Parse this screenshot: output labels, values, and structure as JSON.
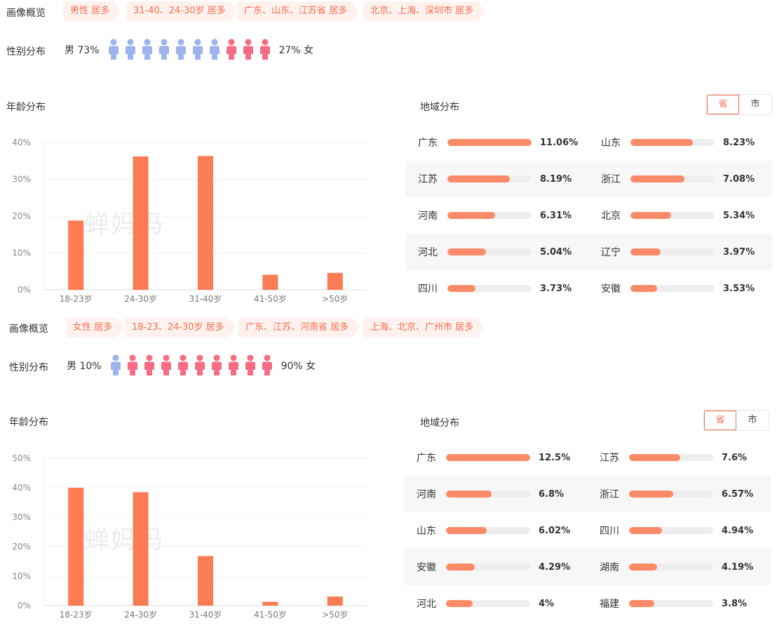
{
  "panels": [
    {
      "overview_label": "画像概览",
      "tags": [
        "男性 居多",
        "31-40、24-30岁 居多",
        "广东、山东、江苏省 居多",
        "北京、上海、深圳市 居多"
      ],
      "gender_label": "性别分布",
      "male_text": "男 73%",
      "female_text": "27% 女",
      "male_icons": 7,
      "female_icons": 3,
      "age_title": "年龄分布",
      "region_title": "地域分布",
      "toggle": {
        "province": "省",
        "city": "市"
      },
      "watermark": "蝉妈妈",
      "chart_data": {
        "type": "bar",
        "categories": [
          "18-23岁",
          "24-30岁",
          "31-40岁",
          "41-50岁",
          ">50岁"
        ],
        "values": [
          18.8,
          36.2,
          36.3,
          4.1,
          4.6
        ],
        "ylim": [
          0,
          40
        ],
        "yticks": [
          0,
          10,
          20,
          30,
          40
        ],
        "ytick_labels": [
          "0%",
          "10%",
          "20%",
          "30%",
          "40%"
        ],
        "title": "年龄分布",
        "xlabel": "",
        "ylabel": ""
      },
      "regions": [
        {
          "name": "广东",
          "value": "11.06%",
          "pct": 11.06
        },
        {
          "name": "山东",
          "value": "8.23%",
          "pct": 8.23
        },
        {
          "name": "江苏",
          "value": "8.19%",
          "pct": 8.19
        },
        {
          "name": "浙江",
          "value": "7.08%",
          "pct": 7.08
        },
        {
          "name": "河南",
          "value": "6.31%",
          "pct": 6.31
        },
        {
          "name": "北京",
          "value": "5.34%",
          "pct": 5.34
        },
        {
          "name": "河北",
          "value": "5.04%",
          "pct": 5.04
        },
        {
          "name": "辽宁",
          "value": "3.97%",
          "pct": 3.97
        },
        {
          "name": "四川",
          "value": "3.73%",
          "pct": 3.73
        },
        {
          "name": "安徽",
          "value": "3.53%",
          "pct": 3.53
        }
      ]
    },
    {
      "overview_label": "画像概览",
      "tags": [
        "女性 居多",
        "18-23、24-30岁 居多",
        "广东、江苏、河南省 居多",
        "上海、北京、广州市 居多"
      ],
      "gender_label": "性别分布",
      "male_text": "男 10%",
      "female_text": "90% 女",
      "male_icons": 1,
      "female_icons": 9,
      "age_title": "年龄分布",
      "region_title": "地域分布",
      "toggle": {
        "province": "省",
        "city": "市"
      },
      "watermark": "蝉妈妈",
      "chart_data": {
        "type": "bar",
        "categories": [
          "18-23岁",
          "24-30岁",
          "31-40岁",
          "41-50岁",
          ">50岁"
        ],
        "values": [
          40.0,
          38.5,
          16.8,
          1.3,
          3.1
        ],
        "ylim": [
          0,
          50
        ],
        "yticks": [
          0,
          10,
          20,
          30,
          40,
          50
        ],
        "ytick_labels": [
          "0%",
          "10%",
          "20%",
          "30%",
          "40%",
          "50%"
        ],
        "title": "年龄分布",
        "xlabel": "",
        "ylabel": ""
      },
      "regions": [
        {
          "name": "广东",
          "value": "12.5%",
          "pct": 12.5
        },
        {
          "name": "江苏",
          "value": "7.6%",
          "pct": 7.6
        },
        {
          "name": "河南",
          "value": "6.8%",
          "pct": 6.8
        },
        {
          "name": "浙江",
          "value": "6.57%",
          "pct": 6.57
        },
        {
          "name": "山东",
          "value": "6.02%",
          "pct": 6.02
        },
        {
          "name": "四川",
          "value": "4.94%",
          "pct": 4.94
        },
        {
          "name": "安徽",
          "value": "4.29%",
          "pct": 4.29
        },
        {
          "name": "湖南",
          "value": "4.19%",
          "pct": 4.19
        },
        {
          "name": "河北",
          "value": "4%",
          "pct": 4.0
        },
        {
          "name": "福建",
          "value": "3.8%",
          "pct": 3.8
        }
      ]
    }
  ],
  "colors": {
    "accent": "#f36f4f",
    "bar": "#fb7b53",
    "male": "#9db3ee",
    "female": "#f56c84",
    "region_fill": "#fb8b68"
  }
}
